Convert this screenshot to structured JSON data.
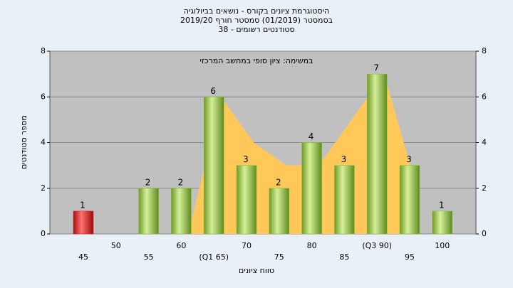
{
  "chart_data": {
    "type": "bar",
    "title": "היסטוגרמת ציונים בקורס - נושאים בביולוגיה",
    "subtitle": "בסמסטר  (01/2019)  סמסטר חורף 2019/20",
    "subtitle2": "סטודנטים רשומים - 38",
    "annotation": "במשימה: ציון סופי במחשב המרכזי",
    "ylabel": "מספר סטודנטים",
    "xlabel": "טווח ציונים",
    "categories": [
      "45",
      "50",
      "55",
      "60",
      "(Q1 65)",
      "70",
      "75",
      "80",
      "85",
      "(Q3 90)",
      "95",
      "100"
    ],
    "values": [
      1,
      0,
      2,
      2,
      6,
      3,
      2,
      4,
      3,
      7,
      3,
      1
    ],
    "colors": [
      "#d42020",
      "#8cbc3c",
      "#8cbc3c",
      "#8cbc3c",
      "#8cbc3c",
      "#8cbc3c",
      "#8cbc3c",
      "#8cbc3c",
      "#8cbc3c",
      "#8cbc3c",
      "#8cbc3c",
      "#8cbc3c"
    ],
    "area": {
      "color": "#ffc859",
      "values": [
        null,
        null,
        null,
        0,
        6,
        4,
        3,
        3,
        5,
        7,
        2,
        null
      ]
    },
    "ylim": [
      0,
      8
    ],
    "yticks": [
      0,
      2,
      4,
      6,
      8
    ],
    "y2lim": [
      0,
      8
    ],
    "y2ticks": [
      0,
      2,
      4,
      6,
      8
    ],
    "grid": true
  }
}
